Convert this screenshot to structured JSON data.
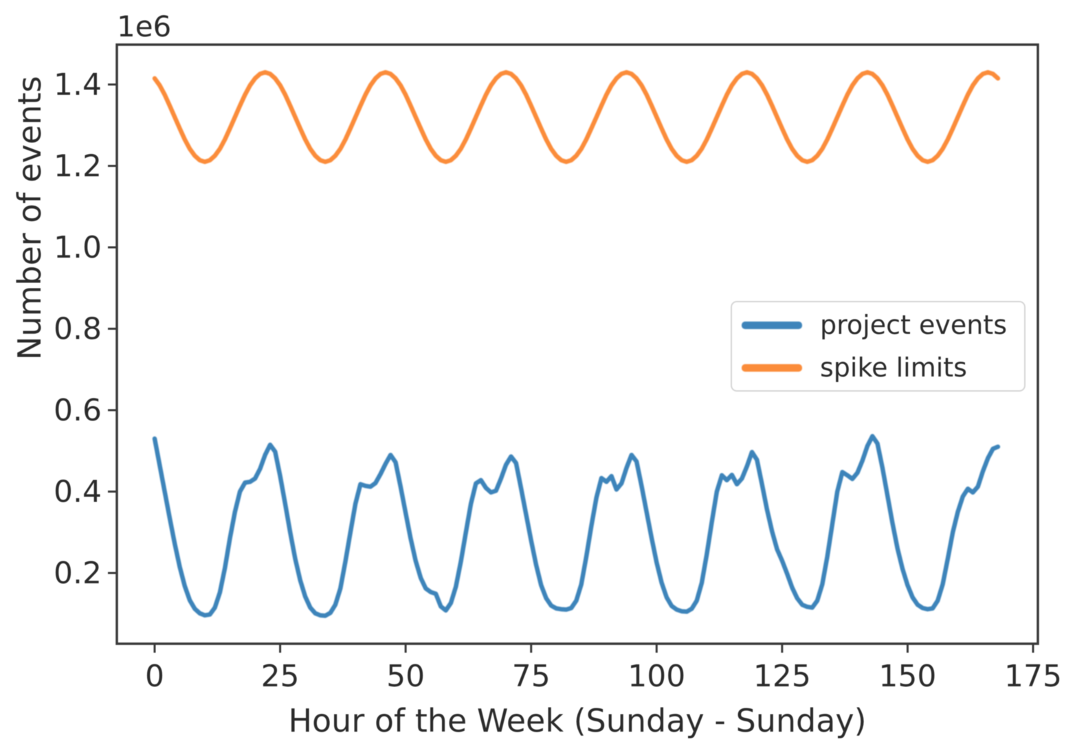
{
  "chart_data": {
    "type": "line",
    "title": "",
    "xlabel": "Hour of the Week (Sunday - Sunday)",
    "ylabel": "Number of events",
    "y_scale": "1e6",
    "x_ticks": [
      0,
      25,
      50,
      75,
      100,
      125,
      150,
      175
    ],
    "y_ticks_e6": [
      0.2,
      0.4,
      0.6,
      0.8,
      1.0,
      1.2,
      1.4
    ],
    "xlim": [
      -7.5,
      176
    ],
    "ylim_e6": [
      0.026,
      1.498
    ],
    "grid": false,
    "legend_position": "center right",
    "x_unit": "hour",
    "x_range_hours": [
      0,
      168
    ],
    "series": [
      {
        "name": "project events",
        "color": "#3d84ba",
        "x_start_hour": 0,
        "step_hours": 1,
        "values_e6": [
          0.53,
          0.465,
          0.4,
          0.335,
          0.272,
          0.215,
          0.168,
          0.133,
          0.112,
          0.101,
          0.096,
          0.098,
          0.115,
          0.152,
          0.212,
          0.285,
          0.35,
          0.4,
          0.422,
          0.424,
          0.432,
          0.456,
          0.49,
          0.515,
          0.498,
          0.438,
          0.37,
          0.3,
          0.235,
          0.182,
          0.142,
          0.115,
          0.101,
          0.096,
          0.095,
          0.102,
          0.122,
          0.162,
          0.228,
          0.3,
          0.37,
          0.418,
          0.414,
          0.412,
          0.421,
          0.443,
          0.468,
          0.49,
          0.472,
          0.412,
          0.348,
          0.285,
          0.23,
          0.188,
          0.162,
          0.153,
          0.149,
          0.118,
          0.108,
          0.126,
          0.166,
          0.228,
          0.3,
          0.37,
          0.42,
          0.428,
          0.409,
          0.398,
          0.402,
          0.432,
          0.466,
          0.486,
          0.47,
          0.408,
          0.344,
          0.28,
          0.22,
          0.17,
          0.138,
          0.12,
          0.113,
          0.111,
          0.11,
          0.114,
          0.132,
          0.172,
          0.24,
          0.315,
          0.385,
          0.433,
          0.424,
          0.438,
          0.405,
          0.42,
          0.458,
          0.49,
          0.474,
          0.414,
          0.35,
          0.286,
          0.226,
          0.176,
          0.14,
          0.119,
          0.11,
          0.106,
          0.105,
          0.112,
          0.132,
          0.176,
          0.246,
          0.325,
          0.4,
          0.44,
          0.428,
          0.441,
          0.418,
          0.432,
          0.462,
          0.497,
          0.478,
          0.418,
          0.356,
          0.302,
          0.258,
          0.23,
          0.198,
          0.164,
          0.138,
          0.122,
          0.117,
          0.115,
          0.132,
          0.172,
          0.24,
          0.32,
          0.4,
          0.448,
          0.44,
          0.431,
          0.446,
          0.476,
          0.512,
          0.536,
          0.518,
          0.458,
          0.39,
          0.322,
          0.26,
          0.21,
          0.17,
          0.14,
          0.122,
          0.114,
          0.111,
          0.113,
          0.132,
          0.172,
          0.235,
          0.3,
          0.35,
          0.388,
          0.407,
          0.398,
          0.412,
          0.45,
          0.482,
          0.505,
          0.51
        ]
      },
      {
        "name": "spike limits",
        "color": "#fb8c3a",
        "x_start_hour": 0,
        "step_hours": 1,
        "daily_cycle_e6": [
          1.415,
          1.398,
          1.375,
          1.348,
          1.32,
          1.292,
          1.265,
          1.242,
          1.225,
          1.214,
          1.21,
          1.214,
          1.225,
          1.242,
          1.265,
          1.292,
          1.32,
          1.348,
          1.375,
          1.398,
          1.415,
          1.426,
          1.43,
          1.426
        ],
        "repeat_days": 7,
        "end_hour": 168,
        "end_value_e6": 1.415,
        "mean_e6": 1.32,
        "amplitude_e6": 0.11,
        "period_hours": 24,
        "peak_hour_of_day": 22
      }
    ]
  }
}
